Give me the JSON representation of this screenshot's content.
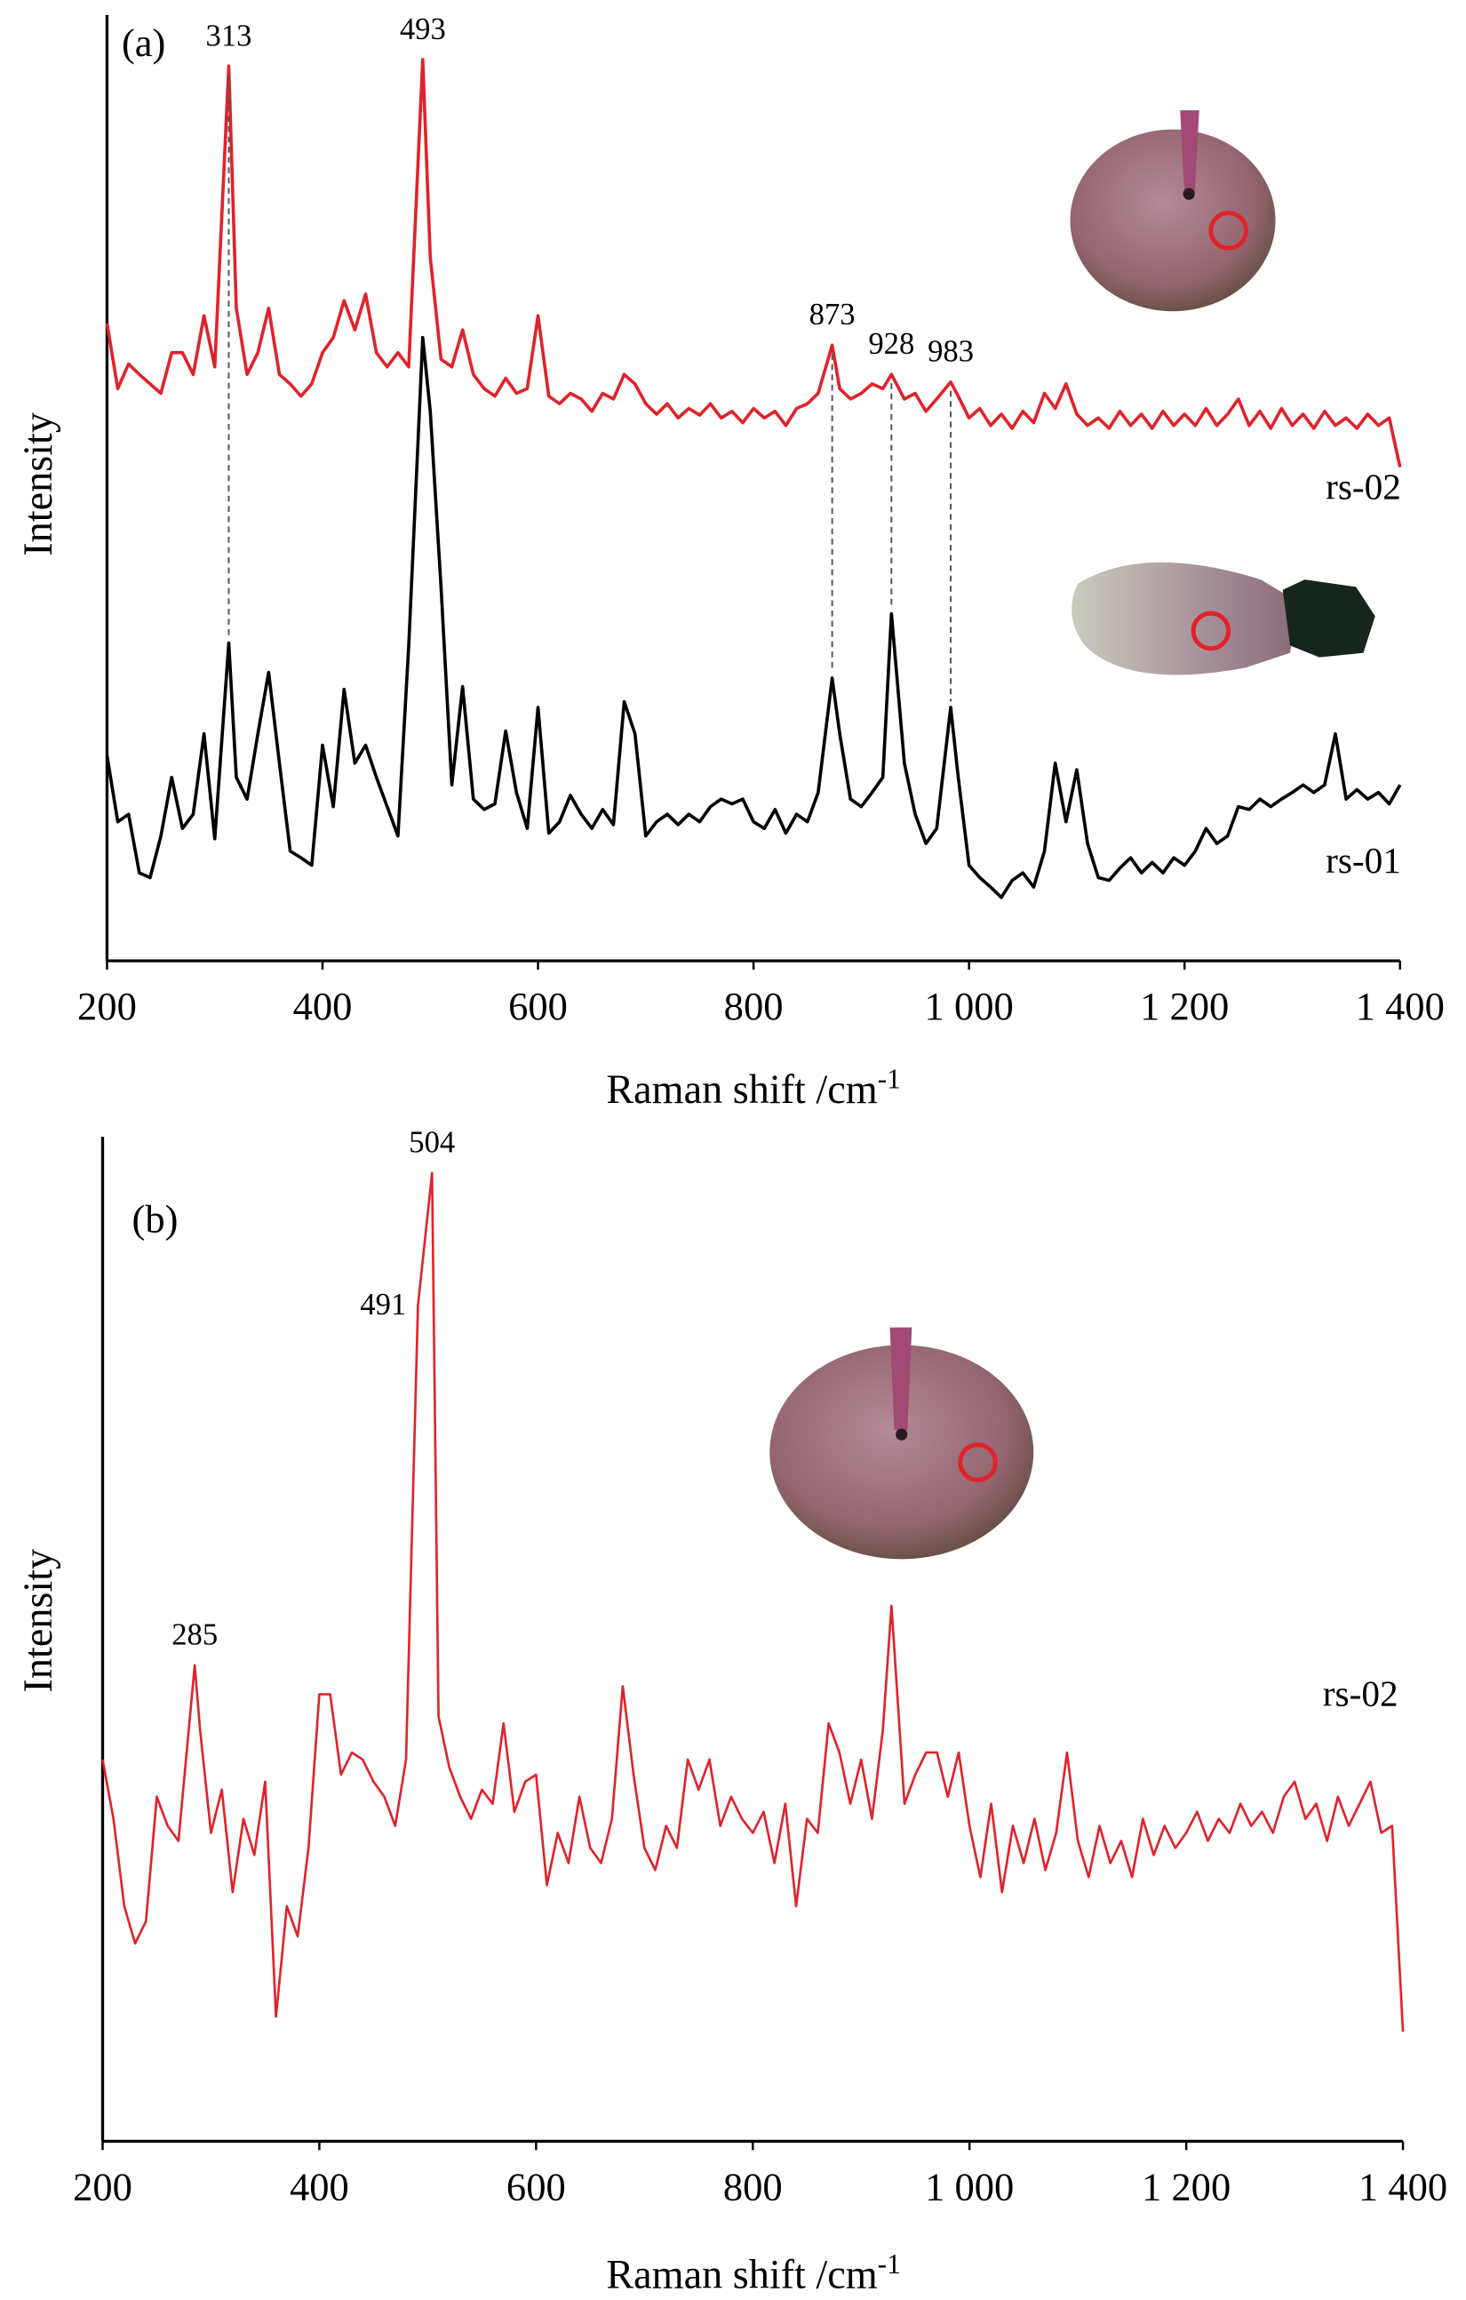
{
  "chart_data": [
    {
      "type": "line",
      "panel_label": "(a)",
      "x_label": "Raman shift /cm",
      "x_label_sup": "-1",
      "y_label": "Intensity",
      "xlim": [
        200,
        1400
      ],
      "ylim": [
        0,
        100
      ],
      "xticks": [
        200,
        400,
        600,
        800,
        {
          "value": 1000,
          "label": "1 000"
        },
        {
          "value": 1200,
          "label": "1 200"
        },
        {
          "value": 1400,
          "label": "1 400"
        }
      ],
      "x": [
        200,
        210,
        220,
        230,
        240,
        250,
        260,
        270,
        280,
        290,
        300,
        313,
        320,
        330,
        340,
        350,
        360,
        370,
        380,
        390,
        400,
        410,
        420,
        430,
        440,
        450,
        460,
        470,
        480,
        493,
        500,
        510,
        520,
        530,
        540,
        550,
        560,
        570,
        580,
        590,
        600,
        610,
        620,
        630,
        640,
        650,
        660,
        670,
        680,
        690,
        700,
        710,
        720,
        730,
        740,
        750,
        760,
        770,
        780,
        790,
        800,
        810,
        820,
        830,
        840,
        850,
        860,
        873,
        880,
        890,
        900,
        910,
        920,
        928,
        940,
        950,
        960,
        970,
        983,
        990,
        1000,
        1010,
        1020,
        1030,
        1040,
        1050,
        1060,
        1070,
        1080,
        1090,
        1100,
        1110,
        1120,
        1130,
        1140,
        1150,
        1160,
        1170,
        1180,
        1190,
        1200,
        1210,
        1220,
        1230,
        1240,
        1250,
        1260,
        1270,
        1280,
        1290,
        1300,
        1310,
        1320,
        1330,
        1340,
        1350,
        1360,
        1370,
        1380,
        1390,
        1400
      ],
      "series": [
        {
          "name": "rs-02",
          "color": "#e0232b",
          "values": [
            67.4,
            60.5,
            63.1,
            62,
            61,
            60,
            64.3,
            64.3,
            62,
            68.2,
            62.8,
            94.6,
            69,
            62,
            64.3,
            69,
            62,
            61,
            59.7,
            61,
            64.3,
            65.9,
            69.8,
            66.7,
            70.5,
            64.3,
            62.8,
            64.3,
            62.8,
            95.3,
            74.4,
            63.6,
            62.8,
            66.7,
            62,
            60.5,
            59.7,
            61.6,
            60,
            60.5,
            68.2,
            59.7,
            58.9,
            60,
            59.4,
            58.1,
            60,
            59.4,
            62,
            61,
            58.9,
            57.8,
            58.9,
            57.4,
            58.4,
            57.7,
            58.9,
            57.4,
            58.1,
            56.9,
            58.4,
            57.4,
            58.1,
            56.6,
            58.4,
            58.9,
            60,
            65.1,
            60.5,
            59.4,
            60,
            61,
            60.5,
            62,
            59.4,
            60,
            58.1,
            59.4,
            61.2,
            59.7,
            57.4,
            58.4,
            56.6,
            57.8,
            56.3,
            58.1,
            56.9,
            60,
            58.4,
            61,
            57.8,
            56.6,
            57.4,
            56.3,
            58.1,
            56.6,
            57.8,
            56.3,
            58.1,
            56.6,
            57.8,
            56.6,
            58.4,
            56.6,
            57.8,
            59.4,
            56.6,
            58.1,
            56.3,
            58.4,
            56.6,
            57.8,
            56.3,
            58.1,
            56.6,
            57.4,
            56.3,
            57.8,
            56.6,
            57.4,
            52.2
          ]
        },
        {
          "name": "rs-01",
          "color": "#000000",
          "values": [
            21.7,
            14.7,
            15.5,
            9.3,
            8.8,
            13.2,
            19.4,
            14,
            15.5,
            24,
            12.9,
            33.6,
            19.4,
            17.1,
            24,
            30.5,
            20.9,
            11.6,
            10.9,
            10.1,
            22.8,
            16.3,
            28.7,
            20.9,
            22.8,
            19.4,
            16.3,
            13.2,
            33.3,
            65.9,
            58.1,
            39.5,
            18.6,
            29,
            17.1,
            16,
            16.6,
            24.3,
            17.8,
            14,
            26.8,
            13.5,
            14.7,
            17.5,
            15.5,
            14,
            16,
            14.4,
            27.4,
            24,
            13.2,
            14.7,
            15.5,
            14.4,
            15.5,
            14.7,
            16.3,
            17.1,
            16.6,
            17.1,
            14.7,
            14,
            16,
            13.5,
            15.5,
            14.7,
            17.8,
            29.9,
            24,
            17.1,
            16.3,
            17.8,
            19.4,
            36.7,
            20.9,
            15.5,
            12.4,
            14,
            26.8,
            19.4,
            10.1,
            8.8,
            7.8,
            6.7,
            8.5,
            9.3,
            7.8,
            11.6,
            20.9,
            14.7,
            20.2,
            12.4,
            8.8,
            8.5,
            9.8,
            10.9,
            9.3,
            10.4,
            9.3,
            10.9,
            10.1,
            11.6,
            14,
            12.4,
            13.2,
            16.3,
            16,
            17.1,
            16.3,
            17.1,
            17.8,
            18.6,
            17.8,
            18.6,
            24,
            17.1,
            18.1,
            17.1,
            17.8,
            16.6,
            18.6
          ]
        }
      ],
      "peak_labels": [
        313,
        493,
        873,
        928,
        983
      ],
      "dashed_lines": [
        313,
        873,
        928,
        983
      ]
    },
    {
      "type": "line",
      "panel_label": "(b)",
      "x_label": "Raman shift /cm",
      "x_label_sup": "-1",
      "y_label": "Intensity",
      "xlim": [
        200,
        1400
      ],
      "ylim": [
        0,
        100
      ],
      "xticks": [
        200,
        400,
        600,
        800,
        {
          "value": 1000,
          "label": "1 000"
        },
        {
          "value": 1200,
          "label": "1 200"
        },
        {
          "value": 1400,
          "label": "1 400"
        }
      ],
      "x": [
        200,
        210,
        220,
        230,
        240,
        250,
        260,
        270,
        285,
        290,
        300,
        310,
        320,
        330,
        340,
        350,
        360,
        370,
        380,
        390,
        400,
        410,
        420,
        430,
        440,
        450,
        460,
        470,
        480,
        491,
        504,
        510,
        520,
        530,
        540,
        550,
        560,
        570,
        580,
        590,
        600,
        610,
        620,
        630,
        640,
        650,
        660,
        670,
        680,
        690,
        700,
        710,
        720,
        730,
        740,
        750,
        760,
        770,
        780,
        790,
        800,
        810,
        820,
        830,
        840,
        850,
        860,
        870,
        880,
        890,
        900,
        910,
        920,
        928,
        940,
        950,
        960,
        970,
        980,
        990,
        1000,
        1010,
        1020,
        1030,
        1040,
        1050,
        1060,
        1070,
        1080,
        1090,
        1100,
        1110,
        1120,
        1130,
        1140,
        1150,
        1160,
        1170,
        1180,
        1190,
        1200,
        1210,
        1220,
        1230,
        1240,
        1250,
        1260,
        1270,
        1280,
        1290,
        1300,
        1310,
        1320,
        1330,
        1340,
        1350,
        1360,
        1370,
        1380,
        1390,
        1400
      ],
      "series": [
        {
          "name": "rs-02",
          "color": "#e0232b",
          "values": [
            38,
            32.1,
            23.4,
            19.7,
            21.9,
            34.3,
            31.4,
            29.9,
            47.4,
            40.9,
            30.7,
            35,
            24.8,
            32.1,
            28.5,
            35.8,
            12.4,
            23.4,
            20.4,
            29.2,
            44.5,
            44.5,
            36.5,
            38.7,
            38,
            35.8,
            34.3,
            31.4,
            38,
            83.2,
            96.4,
            42.3,
            37.2,
            34.3,
            32.1,
            35,
            33.6,
            41.6,
            32.8,
            35.8,
            36.5,
            25.5,
            30.7,
            27.7,
            34.3,
            29.2,
            27.7,
            32.1,
            45.3,
            36.5,
            29.2,
            27,
            31.4,
            29.2,
            38,
            35,
            38,
            31.4,
            34.3,
            32.1,
            30.7,
            32.8,
            27.7,
            33.6,
            23.4,
            32.1,
            30.7,
            41.6,
            38.7,
            33.6,
            38,
            32.1,
            40.9,
            53.3,
            33.6,
            36.5,
            38.7,
            38.7,
            34.3,
            38.7,
            31.4,
            26.3,
            33.6,
            24.8,
            31.4,
            27.7,
            32.1,
            27,
            30.7,
            38.7,
            29.9,
            26.3,
            31.4,
            27.7,
            29.9,
            26.3,
            32.1,
            28.5,
            31.4,
            29.2,
            30.7,
            32.8,
            29.9,
            32.1,
            30.7,
            33.6,
            31.4,
            32.8,
            30.7,
            34.3,
            35.8,
            32.1,
            33.6,
            29.9,
            34.3,
            31.4,
            33.6,
            35.8,
            30.7,
            31.4,
            10.9
          ]
        }
      ],
      "peak_labels": [
        285,
        491,
        504
      ]
    }
  ]
}
